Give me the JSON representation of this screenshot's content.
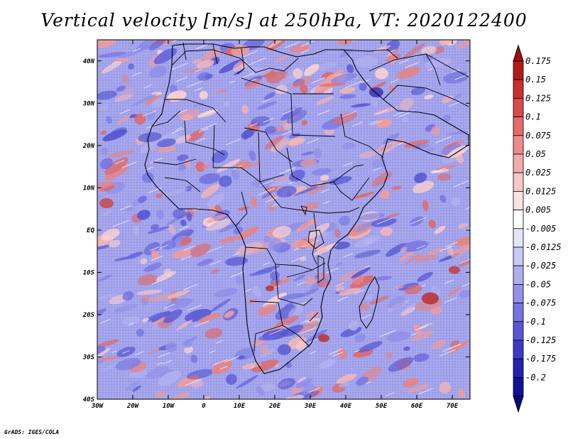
{
  "title": "Vertical velocity [m/s] at 250hPa, VT: 2020122400",
  "credit": "GrADS: IGES/COLA",
  "map": {
    "region": "Africa",
    "lon_range": [
      -30,
      75
    ],
    "lat_range": [
      -40,
      45
    ],
    "lon_ticks": [
      "30W",
      "20W",
      "10W",
      "0",
      "10E",
      "20E",
      "30E",
      "40E",
      "50E",
      "60E",
      "70E"
    ],
    "lat_ticks": [
      "40N",
      "30N",
      "20N",
      "10N",
      "EQ",
      "10S",
      "20S",
      "30S",
      "40S"
    ],
    "colors": {
      "rising": "#e06a6a",
      "sinking": "#6f6fe0",
      "border": "#000000"
    }
  },
  "colorbar": {
    "labels": [
      "0.175",
      "0.15",
      "0.125",
      "0.1",
      "0.075",
      "0.05",
      "0.025",
      "0.0125",
      "0.005",
      "-0.005",
      "-0.0125",
      "-0.025",
      "-0.05",
      "-0.075",
      "-0.1",
      "-0.125",
      "-0.175",
      "-0.2"
    ],
    "colors": [
      "#b21a1a",
      "#cc2e2e",
      "#dc4a4a",
      "#e66b6b",
      "#ee8c8c",
      "#f4abab",
      "#f8c8c8",
      "#fbe2e2",
      "#ffffff",
      "#e4e4fb",
      "#c9c9f6",
      "#aeaef1",
      "#9292ea",
      "#7474e2",
      "#5757d6",
      "#3b3bc8",
      "#2222b4",
      "#11119a"
    ]
  }
}
